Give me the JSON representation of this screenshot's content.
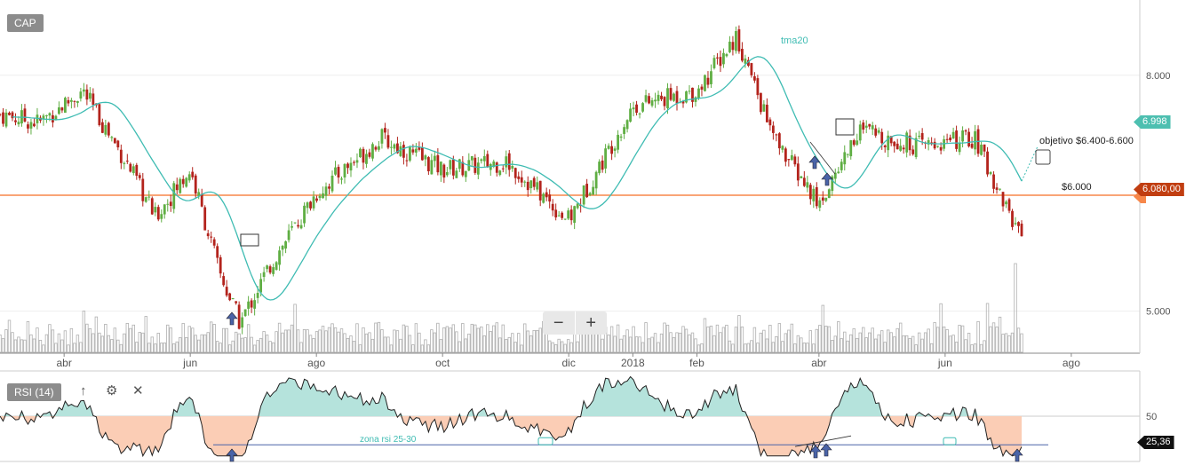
{
  "panel_price_label": "CAP",
  "panel_rsi_label": "RSI (14)",
  "toolbar": {
    "up_icon": "arrow-up-icon",
    "settings_icon": "gear-icon",
    "close_icon": "close-icon"
  },
  "zoom": {
    "minus": "−",
    "plus": "+"
  },
  "badges": {
    "last_price": "6.080,00",
    "tma_value": "6.998",
    "rsi_value": "25,36"
  },
  "colors": {
    "up": "#5fae43",
    "down": "#b3231c",
    "tma": "#3fbcb3",
    "support": "#f7874a",
    "rsi_line": "#222222",
    "rsi_above": "#b5e3dc",
    "rsi_below": "#fbcdb5",
    "rsi_zone_line": "#4a64a8",
    "arrow": "#4a64a8",
    "volume": "#b0b0b0",
    "badge_tma": "#4dbfb0",
    "badge_price": "#c13e11",
    "badge_rsi": "#111111"
  },
  "chart_data": [
    {
      "type": "candlestick",
      "title": "CAP",
      "x_ticks": [
        "abr",
        "jun",
        "ago",
        "oct",
        "dic",
        "2018",
        "feb",
        "abr",
        "jun",
        "ago"
      ],
      "y_ticks": [
        "5.000",
        "8.000"
      ],
      "ylim": [
        4500,
        8900
      ],
      "series_close_approx": [
        {
          "x": "2017-03-01",
          "close": 7500
        },
        {
          "x": "2017-03-20",
          "close": 7400
        },
        {
          "x": "2017-04-10",
          "close": 7800
        },
        {
          "x": "2017-05-01",
          "close": 6900
        },
        {
          "x": "2017-05-15",
          "close": 6200
        },
        {
          "x": "2017-06-01",
          "close": 6800
        },
        {
          "x": "2017-06-15",
          "close": 5500
        },
        {
          "x": "2017-06-25",
          "close": 4850
        },
        {
          "x": "2017-07-10",
          "close": 5600
        },
        {
          "x": "2017-08-01",
          "close": 6500
        },
        {
          "x": "2017-09-01",
          "close": 7200
        },
        {
          "x": "2017-10-01",
          "close": 6800
        },
        {
          "x": "2017-11-01",
          "close": 6900
        },
        {
          "x": "2017-12-01",
          "close": 6150
        },
        {
          "x": "2018-01-01",
          "close": 7600
        },
        {
          "x": "2018-02-01",
          "close": 7800
        },
        {
          "x": "2018-02-20",
          "close": 8500
        },
        {
          "x": "2018-03-10",
          "close": 7200
        },
        {
          "x": "2018-04-01",
          "close": 6350
        },
        {
          "x": "2018-04-20",
          "close": 7300
        },
        {
          "x": "2018-05-20",
          "close": 7100
        },
        {
          "x": "2018-06-15",
          "close": 7200
        },
        {
          "x": "2018-07-05",
          "close": 6080
        }
      ],
      "indicators": {
        "tma_label": "tma20",
        "support_label": "$6.000",
        "support_level": 6000,
        "objective_label": "objetivo $6.400-6.600",
        "current_price": "6.080,00",
        "tma_current": "6.998"
      },
      "volume": "bar histogram below price"
    },
    {
      "type": "line",
      "title": "RSI (14)",
      "y_ticks": [
        "50"
      ],
      "ylim": [
        15,
        85
      ],
      "zone_label": "zona rsi 25-30",
      "zone_level": 27,
      "center_level": 50,
      "current_value": "25,36"
    }
  ]
}
